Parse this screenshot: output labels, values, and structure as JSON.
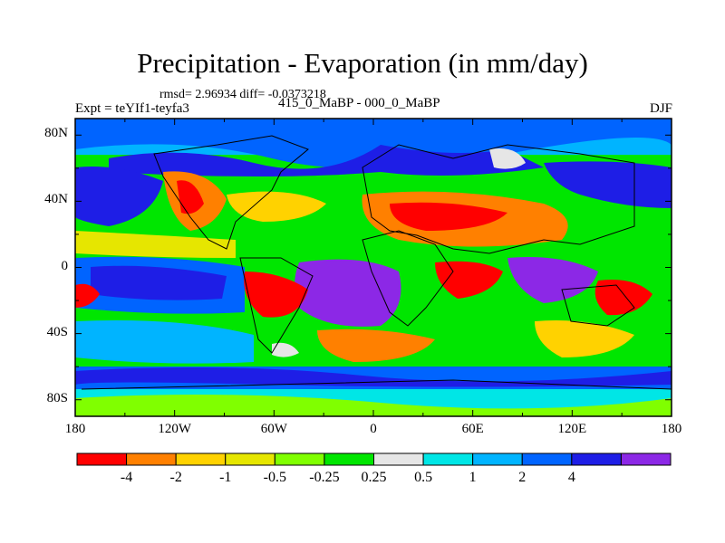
{
  "title": "Precipitation - Evaporation (in mm/day)",
  "stats": "rmsd= 2.96934 diff= -0.0373218",
  "experiment": "Expt = teYIf1-teyfa3",
  "period": "415_0_MaBP - 000_0_MaBP",
  "season": "DJF",
  "lat_labels": [
    "80N",
    "40N",
    "0",
    "40S",
    "80S"
  ],
  "lon_labels": [
    "180",
    "120W",
    "60W",
    "0",
    "60E",
    "120E",
    "180"
  ],
  "colorbar": {
    "labels": [
      "-4",
      "-2",
      "-1",
      "-0.5",
      "-0.25",
      "0.25",
      "0.5",
      "1",
      "2",
      "4"
    ],
    "colors": [
      "#ff0000",
      "#ff8000",
      "#ffd200",
      "#e6e600",
      "#80ff00",
      "#00e600",
      "#e6e6e6",
      "#00e6e6",
      "#00b4ff",
      "#0064ff",
      "#1e1ee6",
      "#8c28e6"
    ]
  }
}
